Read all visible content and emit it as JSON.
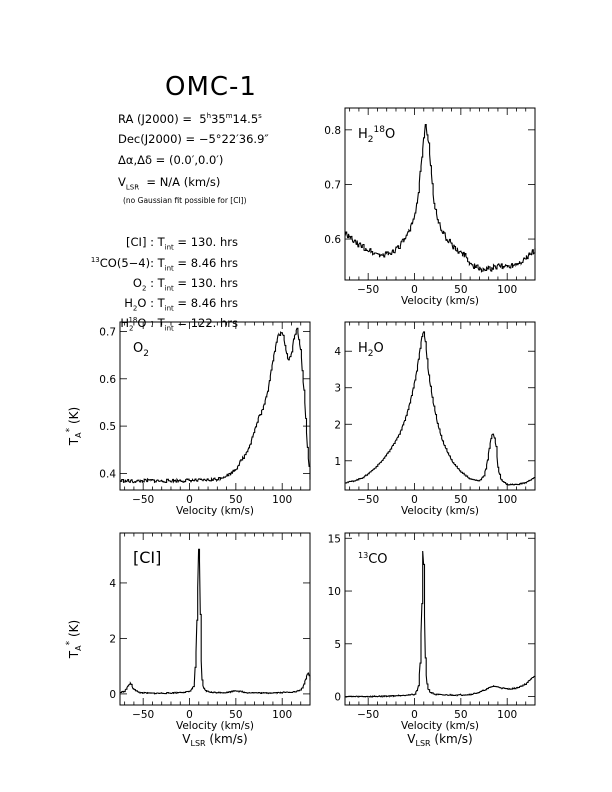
{
  "header": {
    "title": "OMC-1",
    "ra": {
      "label": "RA (J2000)",
      "eq": "=",
      "h": "5",
      "hu": "h",
      "m": "35",
      "mu": "m",
      "s": "14.5",
      "su": "s"
    },
    "dec": {
      "label": "Dec(J2000)",
      "eq": "=",
      "value": "−5°22′36.9″"
    },
    "offset": {
      "label": "Δα,Δδ",
      "eq": "=",
      "value": "(0.0′,0.0′)"
    },
    "vlsr": {
      "v": "V",
      "sub": "LSR",
      "eq": "=",
      "value": "N/A  (km/s)"
    },
    "note": "(no Gaussian fit possible for [CI])"
  },
  "integration": [
    {
      "pre": "",
      "sup": "",
      "main": "[CI]",
      "sub": "",
      "tail": " : T",
      "tsub": "int",
      "value": " = 130. hrs"
    },
    {
      "pre": "13",
      "sup": "",
      "main": "CO(5−4)",
      "sub": "",
      "tail": ": T",
      "tsub": "int",
      "value": " = 8.46 hrs"
    },
    {
      "pre": "",
      "sup": "",
      "main": "O",
      "sub": "2",
      "tail": " : T",
      "tsub": "int",
      "value": " = 130. hrs"
    },
    {
      "pre": "",
      "sup": "",
      "main": "H",
      "sub": "2",
      "tail": "O : T",
      "tsub": "int",
      "value": " = 8.46 hrs"
    },
    {
      "pre": "",
      "sup": "18",
      "main": "H",
      "sub": "2",
      "tail": "O : T",
      "tsub": "int",
      "value": " = 122. hrs"
    }
  ],
  "chart_data": [
    {
      "id": "h218o",
      "type": "line",
      "label": {
        "main": "H",
        "sub": "2",
        "sup": "18",
        "tail": "O"
      },
      "xlabel": "Velocity (km/s)",
      "xlabel2": "",
      "ylabel": "",
      "xlim": [
        -75,
        130
      ],
      "ylim": [
        0.525,
        0.84
      ],
      "xticks": [
        -50,
        0,
        50,
        100
      ],
      "yticks": [
        0.6,
        0.7,
        0.8
      ],
      "ytick_labels": [
        "0.6",
        "0.7",
        "0.8"
      ],
      "x": [
        -75,
        -65,
        -55,
        -45,
        -35,
        -25,
        -15,
        -10,
        -5,
        0,
        3,
        6,
        9,
        12,
        15,
        18,
        21,
        25,
        30,
        35,
        40,
        45,
        50,
        55,
        60,
        70,
        80,
        90,
        100,
        110,
        120,
        130
      ],
      "y": [
        0.61,
        0.595,
        0.585,
        0.575,
        0.57,
        0.575,
        0.59,
        0.6,
        0.615,
        0.64,
        0.67,
        0.72,
        0.77,
        0.81,
        0.78,
        0.72,
        0.67,
        0.63,
        0.615,
        0.6,
        0.59,
        0.58,
        0.575,
        0.57,
        0.555,
        0.545,
        0.545,
        0.55,
        0.55,
        0.555,
        0.565,
        0.58
      ]
    },
    {
      "id": "o2",
      "type": "line",
      "label": {
        "main": "O",
        "sub": "2",
        "sup": "",
        "tail": ""
      },
      "xlabel": "Velocity (km/s)",
      "xlabel2": "",
      "ylabel": {
        "main": "T",
        "sub": "A",
        "sup": "*",
        "tail": " (K)"
      },
      "xlim": [
        -75,
        130
      ],
      "ylim": [
        0.365,
        0.72
      ],
      "xticks": [
        -50,
        0,
        50,
        100
      ],
      "yticks": [
        0.4,
        0.5,
        0.6,
        0.7
      ],
      "ytick_labels": [
        "0.4",
        "0.5",
        "0.6",
        "0.7"
      ],
      "x": [
        -75,
        -60,
        -45,
        -30,
        -15,
        0,
        15,
        30,
        35,
        40,
        45,
        50,
        55,
        60,
        65,
        70,
        75,
        80,
        85,
        88,
        91,
        95,
        100,
        103,
        106,
        110,
        113,
        116,
        120,
        124,
        127,
        130
      ],
      "y": [
        0.385,
        0.383,
        0.385,
        0.384,
        0.385,
        0.385,
        0.385,
        0.388,
        0.392,
        0.396,
        0.4,
        0.41,
        0.425,
        0.44,
        0.46,
        0.49,
        0.52,
        0.54,
        0.58,
        0.62,
        0.65,
        0.69,
        0.7,
        0.67,
        0.64,
        0.655,
        0.69,
        0.705,
        0.66,
        0.56,
        0.46,
        0.39
      ]
    },
    {
      "id": "h2o",
      "type": "line",
      "label": {
        "main": "H",
        "sub": "2",
        "sup": "",
        "tail": "O"
      },
      "xlabel": "Velocity (km/s)",
      "xlabel2": "",
      "ylabel": "",
      "xlim": [
        -75,
        130
      ],
      "ylim": [
        0.2,
        4.8
      ],
      "xticks": [
        -50,
        0,
        50,
        100
      ],
      "yticks": [
        1,
        2,
        3,
        4
      ],
      "ytick_labels": [
        "1",
        "2",
        "3",
        "4"
      ],
      "x": [
        -75,
        -65,
        -55,
        -45,
        -35,
        -25,
        -15,
        -8,
        -3,
        2,
        5,
        8,
        10,
        12,
        15,
        20,
        25,
        30,
        40,
        50,
        60,
        70,
        75,
        78,
        81,
        83,
        85,
        88,
        90,
        93,
        97,
        100,
        110,
        120,
        130
      ],
      "y": [
        0.4,
        0.45,
        0.55,
        0.75,
        1.0,
        1.35,
        1.8,
        2.3,
        2.8,
        3.4,
        3.9,
        4.4,
        4.55,
        4.2,
        3.4,
        2.6,
        2.0,
        1.55,
        1.0,
        0.7,
        0.5,
        0.45,
        0.6,
        0.9,
        1.4,
        1.7,
        1.75,
        1.4,
        0.8,
        0.5,
        0.4,
        0.35,
        0.35,
        0.4,
        0.55
      ]
    },
    {
      "id": "ci",
      "type": "line",
      "label": {
        "main": "[CI]",
        "sub": "",
        "sup": "",
        "tail": ""
      },
      "xlabel": "Velocity (km/s)",
      "xlabel2": {
        "main": "V",
        "sub": "LSR",
        "tail": " (km/s)"
      },
      "ylabel": {
        "main": "T",
        "sub": "A",
        "sup": "*",
        "tail": " (K)"
      },
      "xlim": [
        -75,
        130
      ],
      "ylim": [
        -0.4,
        5.8
      ],
      "xticks": [
        -50,
        0,
        50,
        100
      ],
      "yticks": [
        0,
        2,
        4
      ],
      "ytick_labels": [
        "0",
        "2",
        "4"
      ],
      "x": [
        -75,
        -70,
        -67,
        -64,
        -61,
        -55,
        -40,
        -20,
        0,
        5,
        7,
        9,
        10,
        11,
        12,
        13,
        15,
        18,
        25,
        40,
        50,
        60,
        80,
        100,
        115,
        120,
        123,
        126,
        128,
        130
      ],
      "y": [
        0.05,
        0.1,
        0.25,
        0.4,
        0.2,
        0.05,
        0.02,
        0.03,
        0.08,
        0.3,
        1.5,
        4.0,
        5.5,
        4.5,
        2.0,
        0.6,
        0.2,
        0.1,
        0.05,
        0.05,
        0.12,
        0.05,
        0.03,
        0.05,
        0.08,
        0.15,
        0.3,
        0.6,
        0.8,
        0.5
      ]
    },
    {
      "id": "co13",
      "type": "line",
      "label": {
        "main": "CO",
        "sub": "",
        "sup": "13",
        "tail": "",
        "presup": true
      },
      "xlabel": "Velocity (km/s)",
      "xlabel2": {
        "main": "V",
        "sub": "LSR",
        "tail": " (km/s)"
      },
      "ylabel": "",
      "xlim": [
        -75,
        130
      ],
      "ylim": [
        -0.8,
        15.5
      ],
      "xticks": [
        -50,
        0,
        50,
        100
      ],
      "yticks": [
        0,
        5,
        10,
        15
      ],
      "ytick_labels": [
        "0",
        "5",
        "10",
        "15"
      ],
      "x": [
        -75,
        -50,
        -25,
        0,
        4,
        6,
        8,
        9,
        10,
        11,
        12,
        14,
        17,
        22,
        30,
        50,
        60,
        70,
        80,
        85,
        90,
        100,
        110,
        120,
        130
      ],
      "y": [
        0.0,
        0.0,
        0.05,
        0.2,
        0.8,
        3.0,
        9.0,
        14.5,
        12.0,
        6.0,
        2.5,
        0.8,
        0.4,
        0.2,
        0.15,
        0.15,
        0.2,
        0.4,
        0.8,
        1.0,
        0.9,
        0.7,
        0.8,
        1.2,
        2.0
      ]
    }
  ]
}
